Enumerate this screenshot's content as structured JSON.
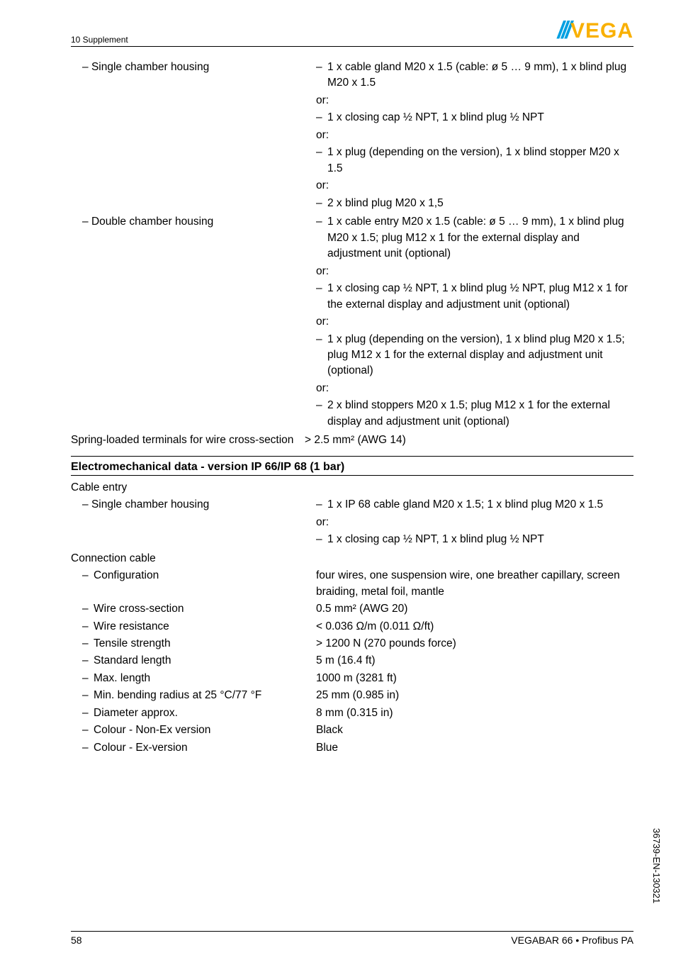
{
  "header": {
    "section_label": "10 Supplement",
    "logo_text": "VEGA"
  },
  "top_items": [
    {
      "label": "Single chamber housing",
      "subs": [
        {
          "dash": "–",
          "text": "1 x cable gland M20 x 1.5 (cable: ø 5 … 9 mm), 1 x blind plug M20 x 1.5",
          "or_after": true
        },
        {
          "dash": "–",
          "text": "1 x closing cap ½ NPT, 1 x blind plug ½ NPT",
          "or_after": true
        },
        {
          "dash": "–",
          "text": "1 x plug (depending on the version), 1 x blind stopper M20 x 1.5",
          "or_after": true
        },
        {
          "dash": "–",
          "text": "2 x blind plug M20 x 1,5",
          "or_after": false
        }
      ]
    },
    {
      "label": "Double chamber housing",
      "subs": [
        {
          "dash": "–",
          "text": "1 x cable entry M20 x 1.5 (cable: ø 5 … 9 mm), 1 x blind plug M20 x 1.5; plug M12 x 1 for the external display and adjustment unit (optional)",
          "or_after": true
        },
        {
          "dash": "–",
          "text": "1 x closing cap ½ NPT, 1 x blind plug ½ NPT, plug M12 x 1 for the external display and adjustment unit (optional)",
          "or_after": true
        },
        {
          "dash": "–",
          "text": "1 x plug (depending on the version), 1 x blind plug M20 x 1.5; plug M12 x 1 for the external display and adjustment unit (optional)",
          "or_after": true
        },
        {
          "dash": "–",
          "text": "2 x blind stoppers M20 x 1.5; plug M12 x 1 for the external display and adjustment unit (optional)",
          "or_after": false
        }
      ]
    }
  ],
  "spring_row": {
    "label": "Spring-loaded terminals for wire cross-section",
    "value": "> 2.5 mm² (AWG 14)"
  },
  "section2": {
    "heading": "Electromechanical data - version IP 66/IP 68 (1 bar)",
    "cable_entry_heading": "Cable entry",
    "single_chamber": {
      "label": "Single chamber housing",
      "subs": [
        {
          "dash": "–",
          "text": "1 x IP 68 cable gland M20 x 1.5; 1 x blind plug M20 x 1.5",
          "or_after": true
        },
        {
          "dash": "–",
          "text": "1 x closing cap ½ NPT, 1 x blind plug ½ NPT",
          "or_after": false
        }
      ]
    },
    "connection_cable_heading": "Connection cable",
    "conn_rows": [
      {
        "label": "Configuration",
        "value": "four wires, one suspension wire, one breather capillary, screen braiding, metal foil, mantle"
      },
      {
        "label": "Wire cross-section",
        "value": "0.5 mm² (AWG 20)"
      },
      {
        "label": "Wire resistance",
        "value": "< 0.036 Ω/m (0.011 Ω/ft)"
      },
      {
        "label": "Tensile strength",
        "value": "> 1200 N (270 pounds force)"
      },
      {
        "label": "Standard length",
        "value": "5 m (16.4 ft)"
      },
      {
        "label": "Max. length",
        "value": "1000 m (3281 ft)"
      },
      {
        "label": "Min. bending radius at 25 °C/77 °F",
        "value": "25 mm (0.985 in)"
      },
      {
        "label": "Diameter approx.",
        "value": "8 mm (0.315 in)"
      },
      {
        "label": "Colour - Non-Ex version",
        "value": "Black"
      },
      {
        "label": "Colour - Ex-version",
        "value": "Blue"
      }
    ]
  },
  "footer": {
    "page_number": "58",
    "doc_title": "VEGABAR 66 • Profibus PA"
  },
  "side_code": "36739-EN-130321",
  "strings": {
    "or": "or:",
    "long_dash": "–"
  }
}
